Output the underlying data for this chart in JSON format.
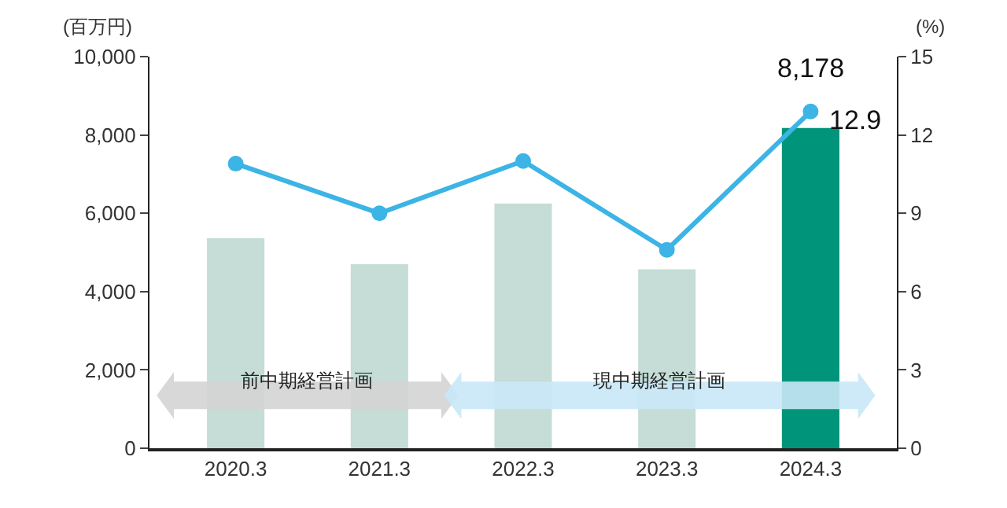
{
  "chart_data": {
    "type": "bar",
    "categories": [
      "2020.3",
      "2021.3",
      "2022.3",
      "2023.3",
      "2024.3"
    ],
    "ylabel": "(百万円)",
    "y2label": "(%)",
    "series": [
      {
        "colors": [
          "#c5ddd6",
          "#c5ddd6",
          "#c5ddd6",
          "#c5ddd6",
          "#00957a"
        ],
        "values": [
          5360,
          4700,
          6250,
          4570,
          8178
        ],
        "value_labels": [
          null,
          null,
          null,
          null,
          "8,178"
        ]
      },
      {
        "type": "line",
        "axis": "y2",
        "color": "#3cb4e5",
        "values": [
          10.9,
          9.0,
          11.0,
          7.6,
          12.9
        ],
        "value_labels": [
          null,
          null,
          null,
          null,
          "12.9"
        ],
        "marker": "circle",
        "line_style": "solid"
      }
    ],
    "ylim": [
      0,
      10000
    ],
    "yticks": [
      0,
      {
        "value": 2000,
        "label": "2,000"
      },
      {
        "value": 4000,
        "label": "4,000"
      },
      {
        "value": 6000,
        "label": "6,000"
      },
      {
        "value": 8000,
        "label": "8,000"
      },
      {
        "value": 10000,
        "label": "10,000"
      }
    ],
    "y2lim": [
      0,
      15
    ],
    "y2ticks": [
      0,
      3,
      6,
      9,
      12,
      15
    ],
    "annotations": [
      "前中期経営計画",
      "現中期経営計画"
    ],
    "grid": false,
    "legend": false
  }
}
